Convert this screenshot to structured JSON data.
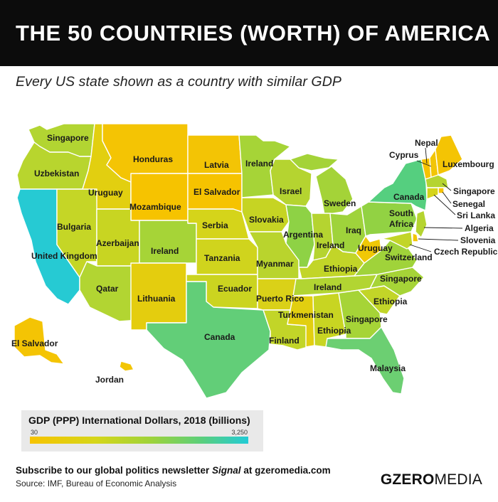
{
  "header": {
    "title": "THE 50 COUNTRIES (WORTH) OF AMERICA",
    "subtitle": "Every US state shown as a country with similar GDP"
  },
  "legend": {
    "title": "GDP (PPP) International Dollars, 2018 (billions)",
    "min_label": "30",
    "max_label": "3,250",
    "min_value": 30,
    "max_value": 3250,
    "colors": [
      "#f7c300",
      "#d6d61a",
      "#9fd33a",
      "#5ccf7a",
      "#22cbd6"
    ]
  },
  "footer": {
    "newsletter_prefix": "Subscribe to our global politics newsletter ",
    "newsletter_name": "Signal",
    "newsletter_suffix": " at gzeromedia.com",
    "source": "Source: IMF, Bureau of Economic Analysis",
    "brand_bold": "GZERO",
    "brand_light": "MEDIA"
  },
  "map": {
    "states": [
      {
        "id": "WA",
        "country": "Singapore",
        "color": "#b2d532"
      },
      {
        "id": "OR",
        "country": "Uzbekistan",
        "color": "#b8d52e"
      },
      {
        "id": "CA",
        "country": "United Kingdom",
        "color": "#26cad3"
      },
      {
        "id": "ID",
        "country": "Uruguay",
        "color": "#e2cf10"
      },
      {
        "id": "NV",
        "country": "Bulgaria",
        "color": "#c5d626"
      },
      {
        "id": "MT",
        "country": "Honduras",
        "color": "#f4c404"
      },
      {
        "id": "WY",
        "country": "Mozambique",
        "color": "#f6c300"
      },
      {
        "id": "UT",
        "country": "Azerbaijan",
        "color": "#c8d522"
      },
      {
        "id": "AZ",
        "country": "Qatar",
        "color": "#b2d532"
      },
      {
        "id": "CO",
        "country": "Ireland",
        "color": "#a6d437"
      },
      {
        "id": "NM",
        "country": "Lithuania",
        "color": "#e4cd0e"
      },
      {
        "id": "ND",
        "country": "Latvia",
        "color": "#f3c405"
      },
      {
        "id": "SD",
        "country": "El Salvador",
        "color": "#f6c300"
      },
      {
        "id": "NE",
        "country": "Serbia",
        "color": "#d5d41a"
      },
      {
        "id": "KS",
        "country": "Tanzania",
        "color": "#d0d41d"
      },
      {
        "id": "OK",
        "country": "Ecuador",
        "color": "#cbd420"
      },
      {
        "id": "TX",
        "country": "Canada",
        "color": "#62ce78"
      },
      {
        "id": "MN",
        "country": "Ireland",
        "color": "#a6d437"
      },
      {
        "id": "IA",
        "country": "Slovakia",
        "color": "#c6d423"
      },
      {
        "id": "MO",
        "country": "Myanmar",
        "color": "#b9d42d"
      },
      {
        "id": "AR",
        "country": "Puerto Rico",
        "color": "#dad118"
      },
      {
        "id": "LA",
        "country": "Turkmenistan",
        "color": "#c2d528"
      },
      {
        "id": "WI",
        "country": "Israel",
        "color": "#b5d430"
      },
      {
        "id": "IL",
        "country": "Argentina",
        "color": "#8ed245"
      },
      {
        "id": "MI",
        "country": "Sweden",
        "color": "#a4d338"
      },
      {
        "id": "IN",
        "country": "Iraq",
        "color": "#b5d430"
      },
      {
        "id": "OH",
        "country": "Ireland",
        "color": "#9fd33b"
      },
      {
        "id": "KY",
        "country": "Ethiopia",
        "color": "#c2d528"
      },
      {
        "id": "TN",
        "country": "Ireland",
        "color": "#b2d532"
      },
      {
        "id": "MS",
        "country": "Finland",
        "color": "#e2cf10"
      },
      {
        "id": "AL",
        "country": "Ethiopia",
        "color": "#c8d522"
      },
      {
        "id": "GA",
        "country": "Singapore",
        "color": "#a6d437"
      },
      {
        "id": "FL",
        "country": "Malaysia",
        "color": "#6ccf72"
      },
      {
        "id": "SC",
        "country": "Ethiopia",
        "color": "#c2d528"
      },
      {
        "id": "NC",
        "country": "Singapore",
        "color": "#a6d437"
      },
      {
        "id": "VA",
        "country": "Switzerland",
        "color": "#a0d33a"
      },
      {
        "id": "WV",
        "country": "Uruguay",
        "color": "#f0c806"
      },
      {
        "id": "PA",
        "country": "South Africa",
        "color": "#92d243"
      },
      {
        "id": "NY",
        "country": "Canada",
        "color": "#55cf7f"
      },
      {
        "id": "VT",
        "country": "Nepal",
        "color": "#f6c300"
      },
      {
        "id": "NH",
        "country": "Cyprus",
        "color": "#f2c506"
      },
      {
        "id": "ME",
        "country": "Luxembourg",
        "color": "#f4c404"
      },
      {
        "id": "MA",
        "country": "Singapore",
        "color": "#b5d430"
      },
      {
        "id": "RI",
        "country": "Senegal",
        "color": "#f6c300"
      },
      {
        "id": "CT",
        "country": "Sri Lanka",
        "color": "#d5d41a"
      },
      {
        "id": "NJ",
        "country": "Algeria",
        "color": "#b5d430"
      },
      {
        "id": "DE",
        "country": "Slovenia",
        "color": "#f2c506"
      },
      {
        "id": "MD",
        "country": "Czech Republic",
        "color": "#c2d528"
      },
      {
        "id": "AK",
        "country": "El Salvador",
        "color": "#f4c404"
      },
      {
        "id": "HI",
        "country": "Jordan",
        "color": "#f2c506"
      }
    ]
  }
}
